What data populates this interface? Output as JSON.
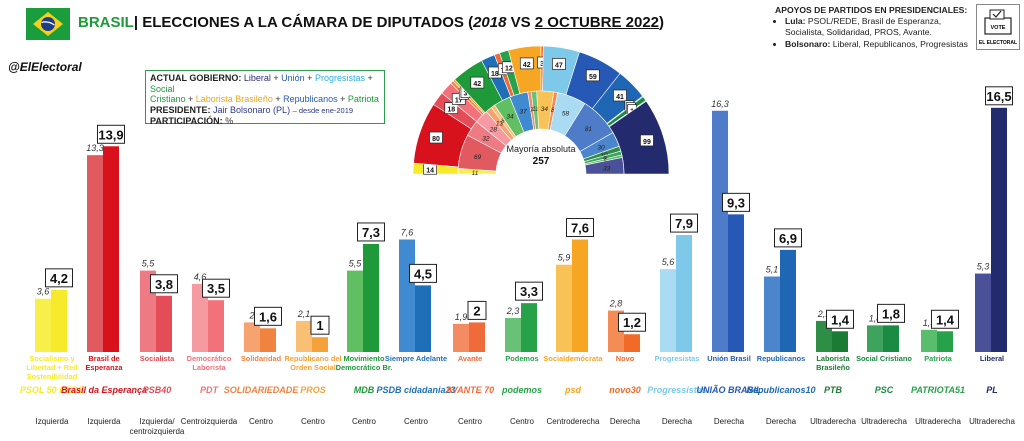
{
  "header": {
    "country": "BRASIL",
    "title": "| ELECCIONES A LA CÁMARA DE DIPUTADOS",
    "years_prefix": "(",
    "year_old": "2018",
    "vs": " VS ",
    "date_new": "2 OCTUBRE 2022",
    "years_suffix": ")",
    "handle": "@ElElectoral"
  },
  "supports": {
    "heading": "APOYOS DE PARTIDOS EN PRESIDENCIALES:",
    "lula_label": "Lula:",
    "lula_text": "PSOL/REDE, Brasil de Esperanza, Socialista, Solidaridad, PROS, Avante.",
    "bolsonaro_label": "Bolsonaro:",
    "bolsonaro_text": "Liberal, Republicanos, Progresistas"
  },
  "vote_logo": {
    "top": "VOTE",
    "bottom": "EL ELECTORAL"
  },
  "government_box": {
    "actual_label": "ACTUAL GOBIERNO:",
    "liberal": "Liberal",
    "union": "Unión",
    "progresistas": "Progresistas",
    "social": "Social",
    "cristiano": "Cristiano",
    "laborista": "Laborista Brasileño",
    "republicanos": "Republicanos",
    "patriota": "Patriota",
    "plus": " + ",
    "president_label": "PRESIDENTE:",
    "president_name": "Jair Bolsonaro (PL)",
    "president_since": "– desde ene-2019",
    "participation_label": "PARTICIPACIÓN:",
    "participation_value": "%"
  },
  "colors": {
    "brand_green": "#1f9a3a",
    "flag_yellow": "#f7d117",
    "flag_blue": "#1c3c8c"
  },
  "chart_data": {
    "type": "bar",
    "series": [
      {
        "name": "2018"
      },
      {
        "name": "2022"
      }
    ],
    "parties": [
      {
        "name": "Socialismo y Libertad + Red Sostenibilidad",
        "v2018": "3,6",
        "v2022": "4,2",
        "y2018": 3.6,
        "y2022": 4.2,
        "ideology": "Izquierda",
        "color": "#f7ea2a",
        "light": "#f8f04a",
        "logo": "PSOL 50 REDE"
      },
      {
        "name": "Brasil de Esperanza",
        "v2018": "13,3",
        "v2022": "13,9",
        "y2018": 13.3,
        "y2022": 13.9,
        "ideology": "Izquierda",
        "color": "#d8121d",
        "light": "#e05a60",
        "logo": "Brasil da Esperança"
      },
      {
        "name": "Socialista",
        "v2018": "5,5",
        "v2022": "3,8",
        "y2018": 5.5,
        "y2022": 3.8,
        "ideology": "Izquierda/ centroizquierda",
        "color": "#e44d57",
        "light": "#ee7b83",
        "logo": "PSB40"
      },
      {
        "name": "Democrático Laborista",
        "v2018": "4,6",
        "v2022": "3,5",
        "y2018": 4.6,
        "y2022": 3.5,
        "ideology": "Centroizquierda",
        "color": "#f2717a",
        "light": "#f59aa1",
        "logo": "PDT"
      },
      {
        "name": "Solidaridad",
        "v2018": "2",
        "v2022": "1,6",
        "y2018": 2.0,
        "y2022": 1.6,
        "ideology": "Centro",
        "color": "#f0833f",
        "light": "#f6a36f",
        "logo": "SOLIDARIEDADE"
      },
      {
        "name": "Republicano del Orden Social",
        "v2018": "2,1",
        "v2022": "1",
        "y2018": 2.1,
        "y2022": 1.0,
        "ideology": "Centro",
        "color": "#f6a23a",
        "light": "#f9bf74",
        "logo": "PROS"
      },
      {
        "name": "Movimiento Democrático Br.",
        "v2018": "5,5",
        "v2022": "7,3",
        "y2018": 5.5,
        "y2022": 7.3,
        "ideology": "Centro",
        "color": "#1f9a3a",
        "light": "#61bf63",
        "logo": "MDB"
      },
      {
        "name": "Siempre Adelante",
        "v2018": "7,6",
        "v2022": "4,5",
        "y2018": 7.6,
        "y2022": 4.5,
        "ideology": "Centro",
        "color": "#1f6fb8",
        "light": "#3f8ad0",
        "logo": "PSDB cidadania23"
      },
      {
        "name": "Avante",
        "v2018": "1,9",
        "v2022": "2",
        "y2018": 1.9,
        "y2022": 2.0,
        "ideology": "Centro",
        "color": "#ef6b3a",
        "light": "#f38c62",
        "logo": "AVANTE 70"
      },
      {
        "name": "Podemos",
        "v2018": "2,3",
        "v2022": "3,3",
        "y2018": 2.3,
        "y2022": 3.3,
        "ideology": "Centro",
        "color": "#27a24a",
        "light": "#67c277",
        "logo": "podemos"
      },
      {
        "name": "Socialdemócrata",
        "v2018": "5,9",
        "v2022": "7,6",
        "y2018": 5.9,
        "y2022": 7.6,
        "ideology": "Centroderecha",
        "color": "#f6a623",
        "light": "#f9c257",
        "logo": "psd"
      },
      {
        "name": "Novo",
        "v2018": "2,8",
        "v2022": "1,2",
        "y2018": 2.8,
        "y2022": 1.2,
        "ideology": "Derecha",
        "color": "#f26a28",
        "light": "#f58c55",
        "logo": "novo30"
      },
      {
        "name": "Progresistas",
        "v2018": "5,6",
        "v2022": "7,9",
        "y2018": 5.6,
        "y2022": 7.9,
        "ideology": "Derecha",
        "color": "#7ec8ea",
        "light": "#a9dbf2",
        "logo": "Progressistas"
      },
      {
        "name": "Unión Brasil",
        "v2018": "16,3",
        "v2022": "9,3",
        "y2018": 16.3,
        "y2022": 9.3,
        "ideology": "Derecha",
        "color": "#2559b5",
        "light": "#4f7cc9",
        "logo": "UNIÃO BRASIL"
      },
      {
        "name": "Republicanos",
        "v2018": "5,1",
        "v2022": "6,9",
        "y2018": 5.1,
        "y2022": 6.9,
        "ideology": "Derecha",
        "color": "#1f67b5",
        "light": "#4b86cc",
        "logo": "Republicanos10"
      },
      {
        "name": "Laborista Brasileño",
        "v2018": "2,1",
        "v2022": "1,4",
        "y2018": 2.1,
        "y2022": 1.4,
        "ideology": "Ultraderecha",
        "color": "#1b7a34",
        "light": "#2f8e45",
        "logo": "PTB"
      },
      {
        "name": "Social Cristiano",
        "v2018": "1,8",
        "v2022": "1,8",
        "y2018": 1.8,
        "y2022": 1.8,
        "ideology": "Ultraderecha",
        "color": "#1b8a42",
        "light": "#3ea35d",
        "logo": "PSC"
      },
      {
        "name": "Patriota",
        "v2018": "1,5",
        "v2022": "1,4",
        "y2018": 1.5,
        "y2022": 1.4,
        "ideology": "Ultraderecha",
        "color": "#27a24a",
        "light": "#5abd6e",
        "logo": "PATRIOTA51"
      },
      {
        "name": "Liberal",
        "v2018": "5,3",
        "v2022": "16,5",
        "y2018": 5.3,
        "y2022": 16.5,
        "ideology": "Ultraderecha",
        "color": "#232a6e",
        "light": "#4a5199",
        "logo": "PL"
      }
    ],
    "hemicycle": {
      "center_label": "Mayoría absoluta",
      "center_value": "257",
      "outer": [
        {
          "seats": 14,
          "label": "14",
          "color": "#f7ea2a"
        },
        {
          "seats": 80,
          "label": "80",
          "color": "#d8121d"
        },
        {
          "seats": 18,
          "label": "18",
          "color": "#e44d57"
        },
        {
          "seats": 17,
          "label": "17",
          "color": "#f2717a"
        },
        {
          "seats": 4,
          "label": "4",
          "color": "#f0833f"
        },
        {
          "seats": 3,
          "label": "3",
          "color": "#f6a23a"
        },
        {
          "seats": 42,
          "label": "42",
          "color": "#1f9a3a"
        },
        {
          "seats": 18,
          "label": "18",
          "color": "#1f6fb8"
        },
        {
          "seats": 7,
          "label": "7",
          "color": "#ef6b3a"
        },
        {
          "seats": 12,
          "label": "12",
          "color": "#27a24a"
        },
        {
          "seats": 42,
          "label": "42",
          "color": "#f6a623"
        },
        {
          "seats": 3,
          "label": "3",
          "color": "#f26a28"
        },
        {
          "seats": 47,
          "label": "47",
          "color": "#7ec8ea"
        },
        {
          "seats": 59,
          "label": "59",
          "color": "#2559b5"
        },
        {
          "seats": 41,
          "label": "41",
          "color": "#1f67b5"
        },
        {
          "seats": 1,
          "label": "1",
          "color": "#1b7a34"
        },
        {
          "seats": 6,
          "label": "6",
          "color": "#1b8a42"
        },
        {
          "seats": 1,
          "label": "1",
          "color": "#27a24a"
        },
        {
          "seats": 99,
          "label": "99",
          "color": "#232a6e"
        }
      ],
      "inner": [
        {
          "seats": 11,
          "label": "11",
          "color": "#f8f04a"
        },
        {
          "seats": 69,
          "label": "69",
          "color": "#e05a60"
        },
        {
          "seats": 32,
          "label": "32",
          "color": "#ee7b83"
        },
        {
          "seats": 28,
          "label": "28",
          "color": "#f59aa1"
        },
        {
          "seats": 13,
          "label": "13",
          "color": "#f6a36f"
        },
        {
          "seats": 8,
          "label": "8",
          "color": "#f9bf74"
        },
        {
          "seats": 34,
          "label": "34",
          "color": "#61bf63"
        },
        {
          "seats": 37,
          "label": "37",
          "color": "#3f8ad0"
        },
        {
          "seats": 7,
          "label": "7",
          "color": "#f38c62"
        },
        {
          "seats": 11,
          "label": "11",
          "color": "#67c277"
        },
        {
          "seats": 34,
          "label": "34",
          "color": "#f9c257"
        },
        {
          "seats": 8,
          "label": "8",
          "color": "#f58c55"
        },
        {
          "seats": 58,
          "label": "58",
          "color": "#a9dbf2"
        },
        {
          "seats": 81,
          "label": "81",
          "color": "#4f7cc9"
        },
        {
          "seats": 30,
          "label": "30",
          "color": "#4b86cc"
        },
        {
          "seats": 10,
          "label": "10",
          "color": "#2f8e45"
        },
        {
          "seats": 8,
          "label": "8",
          "color": "#3ea35d"
        },
        {
          "seats": 5,
          "label": "5",
          "color": "#5abd6e"
        },
        {
          "seats": 33,
          "label": "33",
          "color": "#4a5199"
        }
      ]
    }
  }
}
